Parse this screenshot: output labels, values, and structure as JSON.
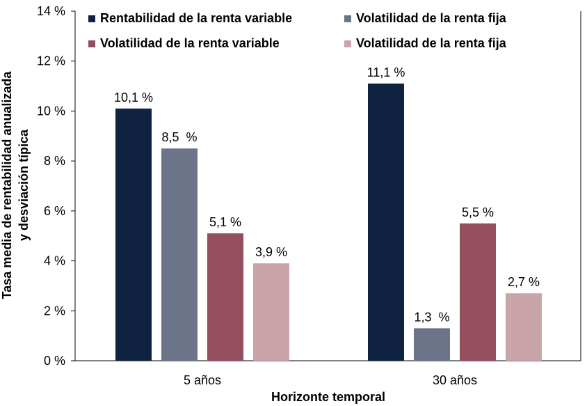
{
  "chart_data": {
    "type": "bar",
    "title": "",
    "xlabel": "Horizonte temporal",
    "ylabel_lines": [
      "Tasa media de rentabilidad anualizada",
      "y desviación típica"
    ],
    "categories": [
      "5 años",
      "30 años"
    ],
    "ylim": [
      0,
      14
    ],
    "yticks": [
      0,
      2,
      4,
      6,
      8,
      10,
      12,
      14
    ],
    "ytick_labels": [
      "0 %",
      "2 %",
      "4 %",
      "6 %",
      "8 %",
      "10 %",
      "12 %",
      "14 %"
    ],
    "grid": false,
    "legend_position": "top",
    "series": [
      {
        "name": "Rentabilidad de la renta variable",
        "color": "#0f2341",
        "values": [
          10.1,
          11.1
        ],
        "labels": [
          "10,1 %",
          "11,1 %"
        ]
      },
      {
        "name": "Volatilidad de la renta fija",
        "color": "#6b7489",
        "values": [
          8.5,
          1.3
        ],
        "labels": [
          "8,5  %",
          "1,3  %"
        ]
      },
      {
        "name": "Volatilidad de la renta variable",
        "color": "#944f5e",
        "values": [
          5.1,
          5.5
        ],
        "labels": [
          "5,1 %",
          "5,5 %"
        ]
      },
      {
        "name": "Volatilidad de la renta fija",
        "color": "#c9a5aa",
        "values": [
          3.9,
          2.7
        ],
        "labels": [
          "3,9 %",
          "2,7 %"
        ]
      }
    ]
  }
}
